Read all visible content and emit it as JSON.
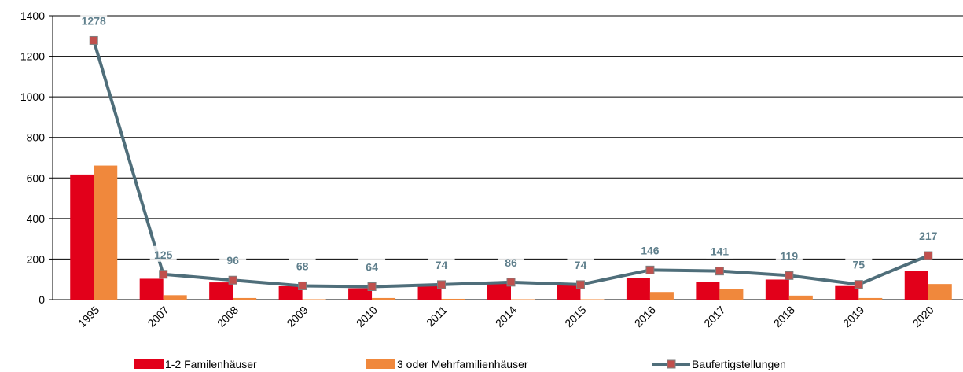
{
  "chart_data": {
    "type": "bar-line",
    "categories": [
      "1995",
      "2007",
      "2008",
      "2009",
      "2010",
      "2011",
      "2014",
      "2015",
      "2016",
      "2017",
      "2018",
      "2019",
      "2020"
    ],
    "series": [
      {
        "name": "1-2 Familenhäuser",
        "color": "#e2001a",
        "type": "bar",
        "values": [
          617,
          103,
          85,
          66,
          56,
          70,
          84,
          72,
          108,
          89,
          99,
          67,
          140
        ]
      },
      {
        "name": "3 oder Mehrfamilienhäuser",
        "color": "#f0883c",
        "type": "bar",
        "values": [
          661,
          22,
          8,
          2,
          8,
          4,
          2,
          2,
          38,
          52,
          20,
          8,
          77
        ]
      },
      {
        "name": "Baufertigstellungen",
        "color": "#4f6e7a",
        "marker_color": "#c0504d",
        "type": "line",
        "values": [
          1278,
          125,
          96,
          68,
          64,
          74,
          86,
          74,
          146,
          141,
          119,
          75,
          217
        ]
      }
    ],
    "ylim": [
      0,
      1400
    ],
    "yticks": [
      0,
      200,
      400,
      600,
      800,
      1000,
      1200,
      1400
    ],
    "grid": true,
    "legend": "bottom"
  }
}
